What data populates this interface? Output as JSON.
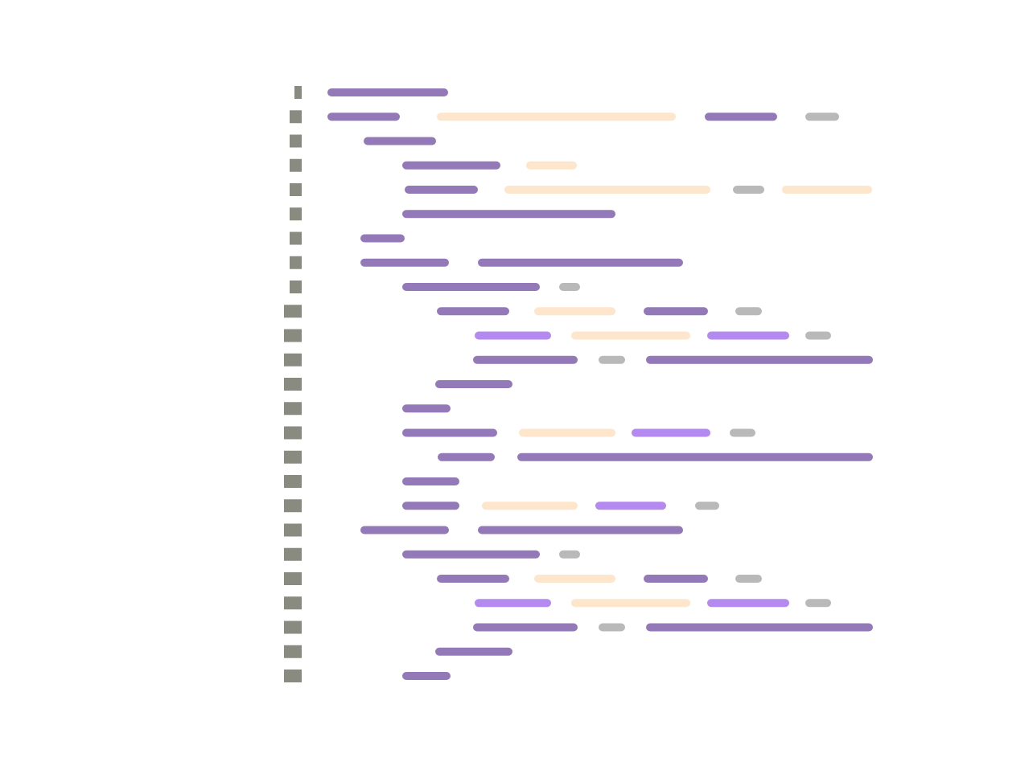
{
  "palette": {
    "background": "#ffffff",
    "line_number": "#8a8b80",
    "keyword": "#9479b8",
    "string": "#fde6cb",
    "function": "#b48af0",
    "punctuation": "#b9b9b9"
  },
  "code_lines": [
    {
      "line": 1,
      "tokens": [
        "keyword"
      ]
    },
    {
      "line": 2,
      "tokens": [
        "keyword",
        "string",
        "keyword",
        "punctuation"
      ]
    },
    {
      "line": 3,
      "tokens": [
        "keyword"
      ]
    },
    {
      "line": 4,
      "tokens": [
        "keyword",
        "string"
      ]
    },
    {
      "line": 5,
      "tokens": [
        "keyword",
        "string",
        "punctuation",
        "string"
      ]
    },
    {
      "line": 6,
      "tokens": [
        "keyword"
      ]
    },
    {
      "line": 7,
      "tokens": [
        "keyword"
      ]
    },
    {
      "line": 8,
      "tokens": [
        "keyword",
        "keyword"
      ]
    },
    {
      "line": 9,
      "tokens": [
        "keyword",
        "punctuation"
      ]
    },
    {
      "line": 10,
      "tokens": [
        "keyword",
        "string",
        "keyword",
        "punctuation"
      ]
    },
    {
      "line": 11,
      "tokens": [
        "function",
        "string",
        "function",
        "punctuation"
      ]
    },
    {
      "line": 12,
      "tokens": [
        "keyword",
        "punctuation",
        "keyword"
      ]
    },
    {
      "line": 13,
      "tokens": [
        "keyword"
      ]
    },
    {
      "line": 14,
      "tokens": [
        "keyword"
      ]
    },
    {
      "line": 15,
      "tokens": [
        "keyword",
        "string",
        "function",
        "punctuation"
      ]
    },
    {
      "line": 16,
      "tokens": [
        "keyword",
        "keyword"
      ]
    },
    {
      "line": 17,
      "tokens": [
        "keyword"
      ]
    },
    {
      "line": 18,
      "tokens": [
        "keyword",
        "string",
        "function",
        "punctuation"
      ]
    },
    {
      "line": 19,
      "tokens": [
        "keyword",
        "keyword"
      ]
    },
    {
      "line": 20,
      "tokens": [
        "keyword",
        "punctuation"
      ]
    },
    {
      "line": 21,
      "tokens": [
        "keyword",
        "string",
        "keyword",
        "punctuation"
      ]
    },
    {
      "line": 22,
      "tokens": [
        "function",
        "string",
        "function",
        "punctuation"
      ]
    },
    {
      "line": 23,
      "tokens": [
        "keyword",
        "punctuation",
        "keyword"
      ]
    },
    {
      "line": 24,
      "tokens": [
        "keyword"
      ]
    },
    {
      "line": 25,
      "tokens": [
        "keyword"
      ]
    }
  ]
}
